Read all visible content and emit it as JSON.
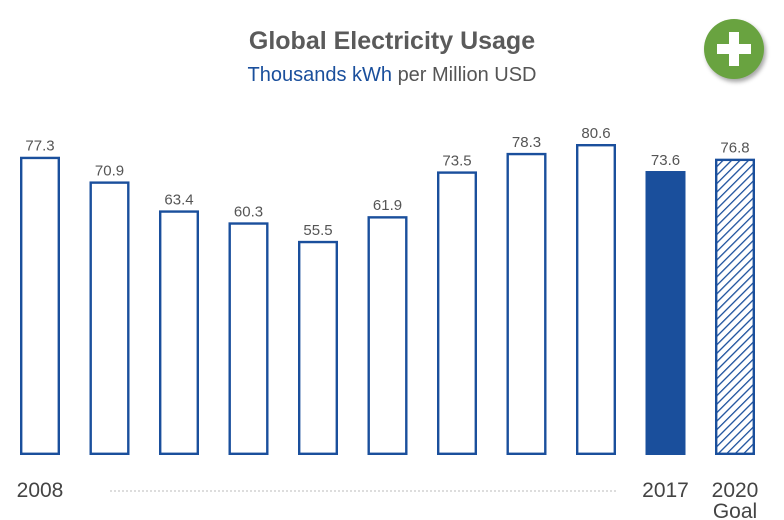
{
  "header": {
    "title": "Global Electricity Usage",
    "subtitle_accent": "Thousands kWh",
    "subtitle_rest": "per Million USD"
  },
  "add_button": {
    "icon": "plus-icon",
    "color": "#69a340"
  },
  "chart_data": {
    "type": "bar",
    "title": "Global Electricity Usage",
    "subtitle": "Thousands kWh per Million USD",
    "values": [
      77.3,
      70.9,
      63.4,
      60.3,
      55.5,
      61.9,
      73.5,
      78.3,
      80.6,
      73.6,
      76.8
    ],
    "value_labels": [
      "77.3",
      "70.9",
      "63.4",
      "60.3",
      "55.5",
      "61.9",
      "73.5",
      "78.3",
      "80.6",
      "73.6",
      "76.8"
    ],
    "bar_styles": [
      "outline",
      "outline",
      "outline",
      "outline",
      "outline",
      "outline",
      "outline",
      "outline",
      "outline",
      "solid",
      "hatched"
    ],
    "x_labels": [
      {
        "bar": 0,
        "text": "2008"
      },
      {
        "bar": 9,
        "text": "2017"
      },
      {
        "bar": 10,
        "text": "2020",
        "text2": "Goal"
      }
    ],
    "dotted_connector": {
      "from_bar": 0,
      "to_bar": 9
    },
    "ylim": [
      0,
      80.6
    ],
    "grid": false,
    "legend": "none",
    "colors": {
      "bar": "#1a4f9c",
      "label": "#555555",
      "connector": "#bbbbbb"
    }
  }
}
